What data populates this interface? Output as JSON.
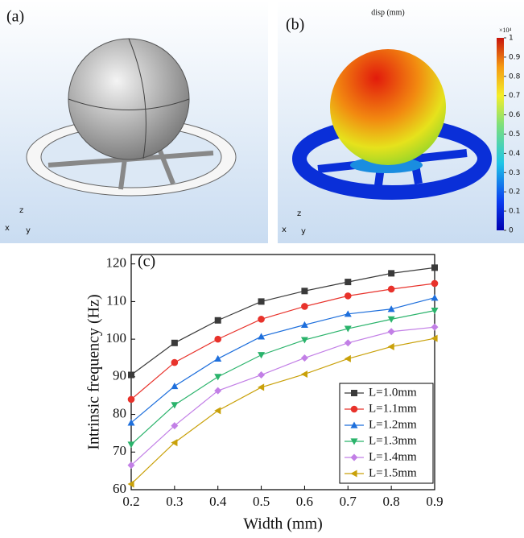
{
  "panel_a": {
    "label": "(a)",
    "axis_labels": [
      "z",
      "x",
      "y"
    ]
  },
  "panel_b": {
    "label": "(b)",
    "title": "disp (mm)",
    "axis_labels": [
      "z",
      "x",
      "y"
    ],
    "colorbar": {
      "multiplier": "×10⁴",
      "lim": [
        0,
        1
      ],
      "ticks": [
        0,
        0.1,
        0.2,
        0.3,
        0.4,
        0.5,
        0.6,
        0.7,
        0.8,
        0.9,
        1
      ]
    }
  },
  "chart_data": {
    "type": "line",
    "title": "(c)",
    "xlabel": "Width (mm)",
    "ylabel": "Intrinsic frequency (Hz)",
    "x": [
      0.2,
      0.3,
      0.4,
      0.5,
      0.6,
      0.7,
      0.8,
      0.9
    ],
    "series": [
      {
        "name": "L=1.0mm",
        "color": "#3a3a3a",
        "marker": "square",
        "values": [
          90.5,
          99,
          105,
          110,
          112.8,
          115.2,
          117.5,
          119
        ]
      },
      {
        "name": "L=1.1mm",
        "color": "#e8322b",
        "marker": "circle",
        "values": [
          84,
          93.8,
          100,
          105.3,
          108.7,
          111.5,
          113.3,
          114.8
        ]
      },
      {
        "name": "L=1.2mm",
        "color": "#1e6fdc",
        "marker": "triangle-up",
        "values": [
          77.8,
          87.5,
          94.8,
          100.7,
          103.8,
          106.7,
          108,
          111
        ]
      },
      {
        "name": "L=1.3mm",
        "color": "#2ab36b",
        "marker": "triangle-down",
        "values": [
          72,
          82.5,
          90,
          95.8,
          99.8,
          102.8,
          105.3,
          107.6
        ]
      },
      {
        "name": "L=1.4mm",
        "color": "#c27fe6",
        "marker": "diamond",
        "values": [
          66.5,
          77,
          86.3,
          90.5,
          95,
          99,
          102,
          103.2
        ]
      },
      {
        "name": "L=1.5mm",
        "color": "#c9a10a",
        "marker": "triangle-left",
        "values": [
          61.5,
          72.5,
          81,
          87.2,
          90.7,
          94.8,
          98,
          100.2
        ]
      }
    ],
    "xlim": [
      0.2,
      0.9
    ],
    "ylim": [
      60,
      122.5
    ],
    "xticks": [
      0.2,
      0.3,
      0.4,
      0.5,
      0.6,
      0.7,
      0.8,
      0.9
    ],
    "yticks": [
      60,
      70,
      80,
      90,
      100,
      110,
      120
    ],
    "legend": "lower right"
  }
}
